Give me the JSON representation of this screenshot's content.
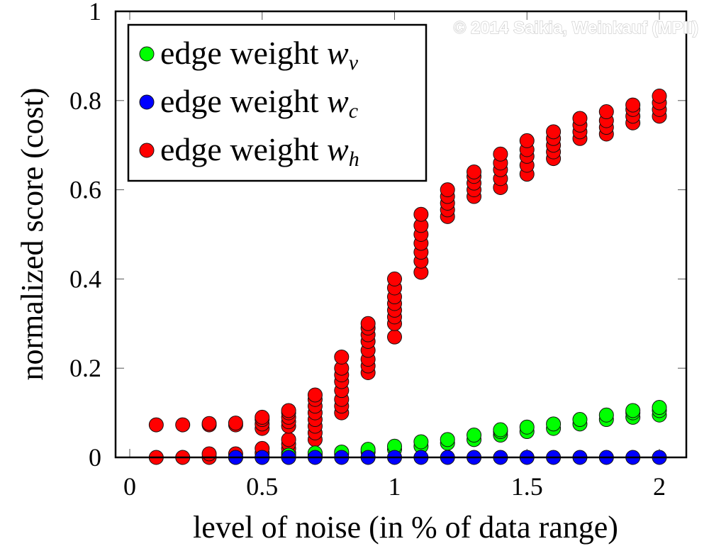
{
  "watermark": "© 2014 Saikia, Weinkauf (MPII)",
  "chart_data": {
    "type": "scatter",
    "title": "",
    "xlabel": "level of noise (in % of data range)",
    "ylabel": "normalized score (cost)",
    "xlim": [
      -0.05,
      2.15
    ],
    "ylim": [
      0,
      1
    ],
    "xticks": [
      0,
      0.5,
      1,
      1.5,
      2
    ],
    "xtick_labels": [
      "0",
      "0.5",
      "1",
      "1.5",
      "2"
    ],
    "yticks": [
      0,
      0.2,
      0.4,
      0.6,
      0.8,
      1
    ],
    "ytick_labels": [
      "0",
      "0.2",
      "0.4",
      "0.6",
      "0.8",
      "1"
    ],
    "grid": "major ticks only",
    "legend": {
      "position": "top-left",
      "entries": [
        {
          "prefix": "edge weight ",
          "symbol": "w",
          "subscript": "v",
          "color": "#00ff00"
        },
        {
          "prefix": "edge weight ",
          "symbol": "w",
          "subscript": "c",
          "color": "#0000ff"
        },
        {
          "prefix": "edge weight ",
          "symbol": "w",
          "subscript": "h",
          "color": "#ff0000"
        }
      ]
    },
    "series": [
      {
        "name": "edge weight w_v",
        "color": "#00ff00",
        "points": [
          [
            0.6,
            0.0
          ],
          [
            0.6,
            0.005
          ],
          [
            0.7,
            0.005
          ],
          [
            0.7,
            0.01
          ],
          [
            0.8,
            0.008
          ],
          [
            0.8,
            0.012
          ],
          [
            0.9,
            0.012
          ],
          [
            0.9,
            0.018
          ],
          [
            1.0,
            0.018
          ],
          [
            1.0,
            0.025
          ],
          [
            1.1,
            0.025
          ],
          [
            1.1,
            0.035
          ],
          [
            1.2,
            0.032
          ],
          [
            1.2,
            0.04
          ],
          [
            1.3,
            0.04
          ],
          [
            1.3,
            0.05
          ],
          [
            1.4,
            0.05
          ],
          [
            1.4,
            0.058
          ],
          [
            1.4,
            0.062
          ],
          [
            1.5,
            0.058
          ],
          [
            1.5,
            0.068
          ],
          [
            1.6,
            0.065
          ],
          [
            1.6,
            0.075
          ],
          [
            1.7,
            0.075
          ],
          [
            1.7,
            0.085
          ],
          [
            1.8,
            0.085
          ],
          [
            1.8,
            0.095
          ],
          [
            1.9,
            0.09
          ],
          [
            1.9,
            0.1
          ],
          [
            1.9,
            0.105
          ],
          [
            2.0,
            0.095
          ],
          [
            2.0,
            0.105
          ],
          [
            2.0,
            0.112
          ]
        ]
      },
      {
        "name": "edge weight w_c",
        "color": "#0000ff",
        "points": [
          [
            0.4,
            0.0
          ],
          [
            0.5,
            0.0
          ],
          [
            0.6,
            0.0
          ],
          [
            0.7,
            0.0
          ],
          [
            0.8,
            0.0
          ],
          [
            0.9,
            0.0
          ],
          [
            1.0,
            0.0
          ],
          [
            1.1,
            0.0
          ],
          [
            1.2,
            0.0
          ],
          [
            1.3,
            0.0
          ],
          [
            1.4,
            0.0
          ],
          [
            1.5,
            0.0
          ],
          [
            1.6,
            0.0
          ],
          [
            1.7,
            0.0
          ],
          [
            1.8,
            0.0
          ],
          [
            1.9,
            0.0
          ],
          [
            2.0,
            0.0
          ]
        ]
      },
      {
        "name": "edge weight w_h",
        "color": "#ff0000",
        "points": [
          [
            0.1,
            0.0
          ],
          [
            0.1,
            0.073
          ],
          [
            0.2,
            0.0
          ],
          [
            0.2,
            0.073
          ],
          [
            0.3,
            0.0
          ],
          [
            0.3,
            0.008
          ],
          [
            0.3,
            0.073
          ],
          [
            0.3,
            0.076
          ],
          [
            0.4,
            0.0
          ],
          [
            0.4,
            0.008
          ],
          [
            0.4,
            0.073
          ],
          [
            0.4,
            0.077
          ],
          [
            0.5,
            0.0
          ],
          [
            0.5,
            0.01
          ],
          [
            0.5,
            0.02
          ],
          [
            0.5,
            0.065
          ],
          [
            0.5,
            0.075
          ],
          [
            0.5,
            0.085
          ],
          [
            0.5,
            0.09
          ],
          [
            0.6,
            0.01
          ],
          [
            0.6,
            0.02
          ],
          [
            0.6,
            0.03
          ],
          [
            0.6,
            0.04
          ],
          [
            0.6,
            0.07
          ],
          [
            0.6,
            0.08
          ],
          [
            0.6,
            0.09
          ],
          [
            0.6,
            0.1
          ],
          [
            0.6,
            0.105
          ],
          [
            0.7,
            0.04
          ],
          [
            0.7,
            0.055
          ],
          [
            0.7,
            0.07
          ],
          [
            0.7,
            0.085
          ],
          [
            0.7,
            0.1
          ],
          [
            0.7,
            0.115
          ],
          [
            0.7,
            0.13
          ],
          [
            0.7,
            0.14
          ],
          [
            0.8,
            0.1
          ],
          [
            0.8,
            0.115
          ],
          [
            0.8,
            0.13
          ],
          [
            0.8,
            0.15
          ],
          [
            0.8,
            0.17
          ],
          [
            0.8,
            0.185
          ],
          [
            0.8,
            0.2
          ],
          [
            0.8,
            0.225
          ],
          [
            0.9,
            0.19
          ],
          [
            0.9,
            0.205
          ],
          [
            0.9,
            0.22
          ],
          [
            0.9,
            0.24
          ],
          [
            0.9,
            0.26
          ],
          [
            0.9,
            0.275
          ],
          [
            0.9,
            0.29
          ],
          [
            0.9,
            0.3
          ],
          [
            1.0,
            0.27
          ],
          [
            1.0,
            0.3
          ],
          [
            1.0,
            0.315
          ],
          [
            1.0,
            0.33
          ],
          [
            1.0,
            0.345
          ],
          [
            1.0,
            0.36
          ],
          [
            1.0,
            0.38
          ],
          [
            1.0,
            0.4
          ],
          [
            1.1,
            0.415
          ],
          [
            1.1,
            0.44
          ],
          [
            1.1,
            0.46
          ],
          [
            1.1,
            0.48
          ],
          [
            1.1,
            0.5
          ],
          [
            1.1,
            0.52
          ],
          [
            1.1,
            0.545
          ],
          [
            1.2,
            0.54
          ],
          [
            1.2,
            0.555
          ],
          [
            1.2,
            0.57
          ],
          [
            1.2,
            0.585
          ],
          [
            1.2,
            0.6
          ],
          [
            1.3,
            0.585
          ],
          [
            1.3,
            0.6
          ],
          [
            1.3,
            0.615
          ],
          [
            1.3,
            0.63
          ],
          [
            1.3,
            0.64
          ],
          [
            1.4,
            0.605
          ],
          [
            1.4,
            0.625
          ],
          [
            1.4,
            0.645
          ],
          [
            1.4,
            0.66
          ],
          [
            1.4,
            0.68
          ],
          [
            1.5,
            0.635
          ],
          [
            1.5,
            0.655
          ],
          [
            1.5,
            0.675
          ],
          [
            1.5,
            0.69
          ],
          [
            1.5,
            0.71
          ],
          [
            1.6,
            0.67
          ],
          [
            1.6,
            0.685
          ],
          [
            1.6,
            0.7
          ],
          [
            1.6,
            0.715
          ],
          [
            1.6,
            0.73
          ],
          [
            1.7,
            0.715
          ],
          [
            1.7,
            0.73
          ],
          [
            1.7,
            0.745
          ],
          [
            1.7,
            0.76
          ],
          [
            1.8,
            0.725
          ],
          [
            1.8,
            0.74
          ],
          [
            1.8,
            0.755
          ],
          [
            1.8,
            0.775
          ],
          [
            1.9,
            0.75
          ],
          [
            1.9,
            0.765
          ],
          [
            1.9,
            0.78
          ],
          [
            1.9,
            0.79
          ],
          [
            2.0,
            0.765
          ],
          [
            2.0,
            0.78
          ],
          [
            2.0,
            0.795
          ],
          [
            2.0,
            0.81
          ]
        ]
      }
    ]
  }
}
